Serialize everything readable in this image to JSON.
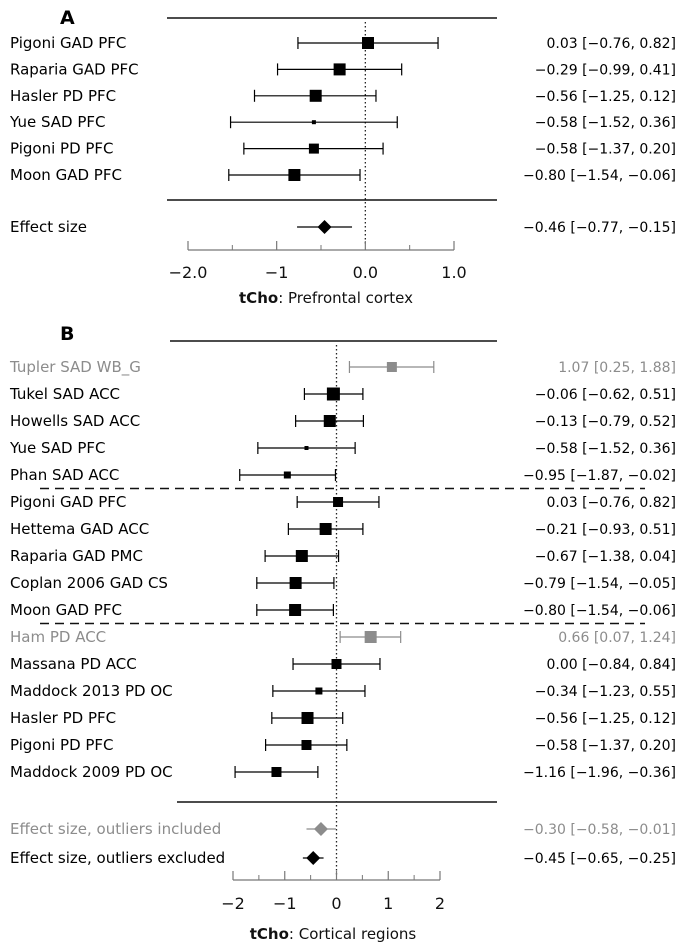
{
  "colors": {
    "main": "#000000",
    "outlier": "#8c8c8c"
  },
  "chart_data": [
    {
      "panel": "A",
      "type": "forest",
      "xlabel_bold": "tCho",
      "xlabel_rest": ": Prefrontal cortex",
      "xlim": [
        -2.0,
        1.0
      ],
      "ticks": [
        -2.0,
        -1.0,
        0.0,
        1.0
      ],
      "tick_labels": [
        "−2.0",
        "−1",
        "0.0",
        "1.0"
      ],
      "minor_ticks": [
        -1.5,
        -0.5,
        0.5
      ],
      "reference_line": 0,
      "studies": [
        {
          "label": "Pigoni GAD PFC",
          "est": 0.03,
          "lo": -0.76,
          "hi": 0.82,
          "ci_text": "0.03 [−0.76, 0.82]",
          "weight": "large",
          "outlier": false
        },
        {
          "label": "Raparia GAD PFC",
          "est": -0.29,
          "lo": -0.99,
          "hi": 0.41,
          "ci_text": "−0.29 [−0.99, 0.41]",
          "weight": "large",
          "outlier": false
        },
        {
          "label": "Hasler PD PFC",
          "est": -0.56,
          "lo": -1.25,
          "hi": 0.12,
          "ci_text": "−0.56 [−1.25, 0.12]",
          "weight": "large",
          "outlier": false
        },
        {
          "label": "Yue SAD PFC",
          "est": -0.58,
          "lo": -1.52,
          "hi": 0.36,
          "ci_text": "−0.58 [−1.52, 0.36]",
          "weight": "tiny",
          "outlier": false
        },
        {
          "label": "Pigoni PD PFC",
          "est": -0.58,
          "lo": -1.37,
          "hi": 0.2,
          "ci_text": "−0.58 [−1.37, 0.20]",
          "weight": "medium",
          "outlier": false
        },
        {
          "label": "Moon GAD PFC",
          "est": -0.8,
          "lo": -1.54,
          "hi": -0.06,
          "ci_text": "−0.80 [−1.54, −0.06]",
          "weight": "large",
          "outlier": false
        }
      ],
      "groups_after": [],
      "summaries": [
        {
          "label": "Effect size",
          "est": -0.46,
          "lo": -0.77,
          "hi": -0.15,
          "ci_text": "−0.46 [−0.77, −0.15]",
          "outlier": false
        }
      ]
    },
    {
      "panel": "B",
      "type": "forest",
      "xlabel_bold": "tCho",
      "xlabel_rest": ": Cortical regions",
      "xlim": [
        -2,
        2
      ],
      "ticks": [
        -2,
        -1,
        0,
        1,
        2
      ],
      "tick_labels": [
        "−2",
        "−1",
        "0",
        "1",
        "2"
      ],
      "minor_ticks": [
        -1.5,
        -0.5,
        0.5,
        1.5
      ],
      "reference_line": 0,
      "studies": [
        {
          "label": "Tupler SAD WB_G",
          "est": 1.07,
          "lo": 0.25,
          "hi": 1.88,
          "ci_text": "1.07 [0.25, 1.88]",
          "weight": "medium",
          "outlier": true
        },
        {
          "label": "Tukel SAD ACC",
          "est": -0.06,
          "lo": -0.62,
          "hi": 0.51,
          "ci_text": "−0.06 [−0.62, 0.51]",
          "weight": "xlarge",
          "outlier": false
        },
        {
          "label": "Howells SAD ACC",
          "est": -0.13,
          "lo": -0.79,
          "hi": 0.52,
          "ci_text": "−0.13 [−0.79, 0.52]",
          "weight": "large",
          "outlier": false
        },
        {
          "label": "Yue SAD PFC",
          "est": -0.58,
          "lo": -1.52,
          "hi": 0.36,
          "ci_text": "−0.58 [−1.52, 0.36]",
          "weight": "tiny",
          "outlier": false
        },
        {
          "label": "Phan SAD ACC",
          "est": -0.95,
          "lo": -1.87,
          "hi": -0.02,
          "ci_text": "−0.95 [−1.87, −0.02]",
          "weight": "small",
          "outlier": false
        },
        {
          "label": "Pigoni GAD PFC",
          "est": 0.03,
          "lo": -0.76,
          "hi": 0.82,
          "ci_text": "0.03 [−0.76, 0.82]",
          "weight": "medium",
          "outlier": false
        },
        {
          "label": "Hettema GAD ACC",
          "est": -0.21,
          "lo": -0.93,
          "hi": 0.51,
          "ci_text": "−0.21 [−0.93, 0.51]",
          "weight": "large",
          "outlier": false
        },
        {
          "label": "Raparia GAD PMC",
          "est": -0.67,
          "lo": -1.38,
          "hi": 0.04,
          "ci_text": "−0.67 [−1.38, 0.04]",
          "weight": "large",
          "outlier": false
        },
        {
          "label": "Coplan 2006 GAD CS",
          "est": -0.79,
          "lo": -1.54,
          "hi": -0.05,
          "ci_text": "−0.79 [−1.54, −0.05]",
          "weight": "large",
          "outlier": false
        },
        {
          "label": "Moon GAD PFC",
          "est": -0.8,
          "lo": -1.54,
          "hi": -0.06,
          "ci_text": "−0.80 [−1.54, −0.06]",
          "weight": "large",
          "outlier": false
        },
        {
          "label": "Ham PD ACC",
          "est": 0.66,
          "lo": 0.07,
          "hi": 1.24,
          "ci_text": "0.66 [0.07, 1.24]",
          "weight": "large",
          "outlier": true
        },
        {
          "label": "Massana PD ACC",
          "est": 0.0,
          "lo": -0.84,
          "hi": 0.84,
          "ci_text": "0.00 [−0.84, 0.84]",
          "weight": "medium",
          "outlier": false
        },
        {
          "label": "Maddock 2013 PD OC",
          "est": -0.34,
          "lo": -1.23,
          "hi": 0.55,
          "ci_text": "−0.34 [−1.23, 0.55]",
          "weight": "small",
          "outlier": false
        },
        {
          "label": "Hasler PD PFC",
          "est": -0.56,
          "lo": -1.25,
          "hi": 0.12,
          "ci_text": "−0.56 [−1.25, 0.12]",
          "weight": "large",
          "outlier": false
        },
        {
          "label": "Pigoni PD PFC",
          "est": -0.58,
          "lo": -1.37,
          "hi": 0.2,
          "ci_text": "−0.58 [−1.37, 0.20]",
          "weight": "medium",
          "outlier": false
        },
        {
          "label": "Maddock 2009 PD OC",
          "est": -1.16,
          "lo": -1.96,
          "hi": -0.36,
          "ci_text": "−1.16 [−1.96, −0.36]",
          "weight": "medium",
          "outlier": false
        }
      ],
      "groups_after": [
        4,
        9
      ],
      "summaries": [
        {
          "label": "Effect size, outliers included",
          "est": -0.3,
          "lo": -0.58,
          "hi": -0.01,
          "ci_text": "−0.30 [−0.58, −0.01]",
          "outlier": true
        },
        {
          "label": "Effect size, outliers excluded",
          "est": -0.45,
          "lo": -0.65,
          "hi": -0.25,
          "ci_text": "−0.45 [−0.65, −0.25]",
          "outlier": false
        }
      ]
    }
  ]
}
